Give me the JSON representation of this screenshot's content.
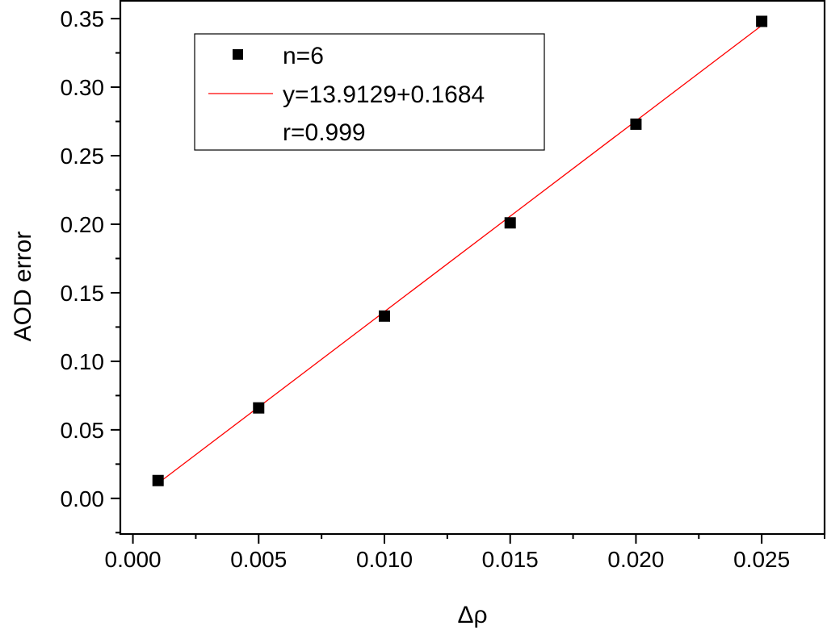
{
  "chart_data": {
    "type": "scatter",
    "title": "",
    "xlabel": "Δρ",
    "ylabel": "AOD error",
    "xlim": [
      -0.0005,
      0.0275
    ],
    "ylim": [
      -0.026,
      0.363
    ],
    "xticks": [
      "0.000",
      "0.005",
      "0.010",
      "0.015",
      "0.020",
      "0.025"
    ],
    "yticks": [
      "0.00",
      "0.05",
      "0.10",
      "0.15",
      "0.20",
      "0.25",
      "0.30",
      "0.35"
    ],
    "grid": false,
    "legend_position": "top-left",
    "series": [
      {
        "name": "n=6",
        "kind": "scatter",
        "marker": "square",
        "color": "#000000",
        "x": [
          0.001,
          0.005,
          0.01,
          0.015,
          0.02,
          0.025
        ],
        "y": [
          0.013,
          0.066,
          0.133,
          0.201,
          0.273,
          0.348
        ]
      },
      {
        "name": "y=13.9129+0.1684",
        "kind": "line",
        "color": "#ff0000",
        "x": [
          0.001,
          0.025
        ],
        "y": [
          0.011,
          0.345
        ]
      }
    ],
    "legend_extra": [
      "r=0.999"
    ]
  }
}
